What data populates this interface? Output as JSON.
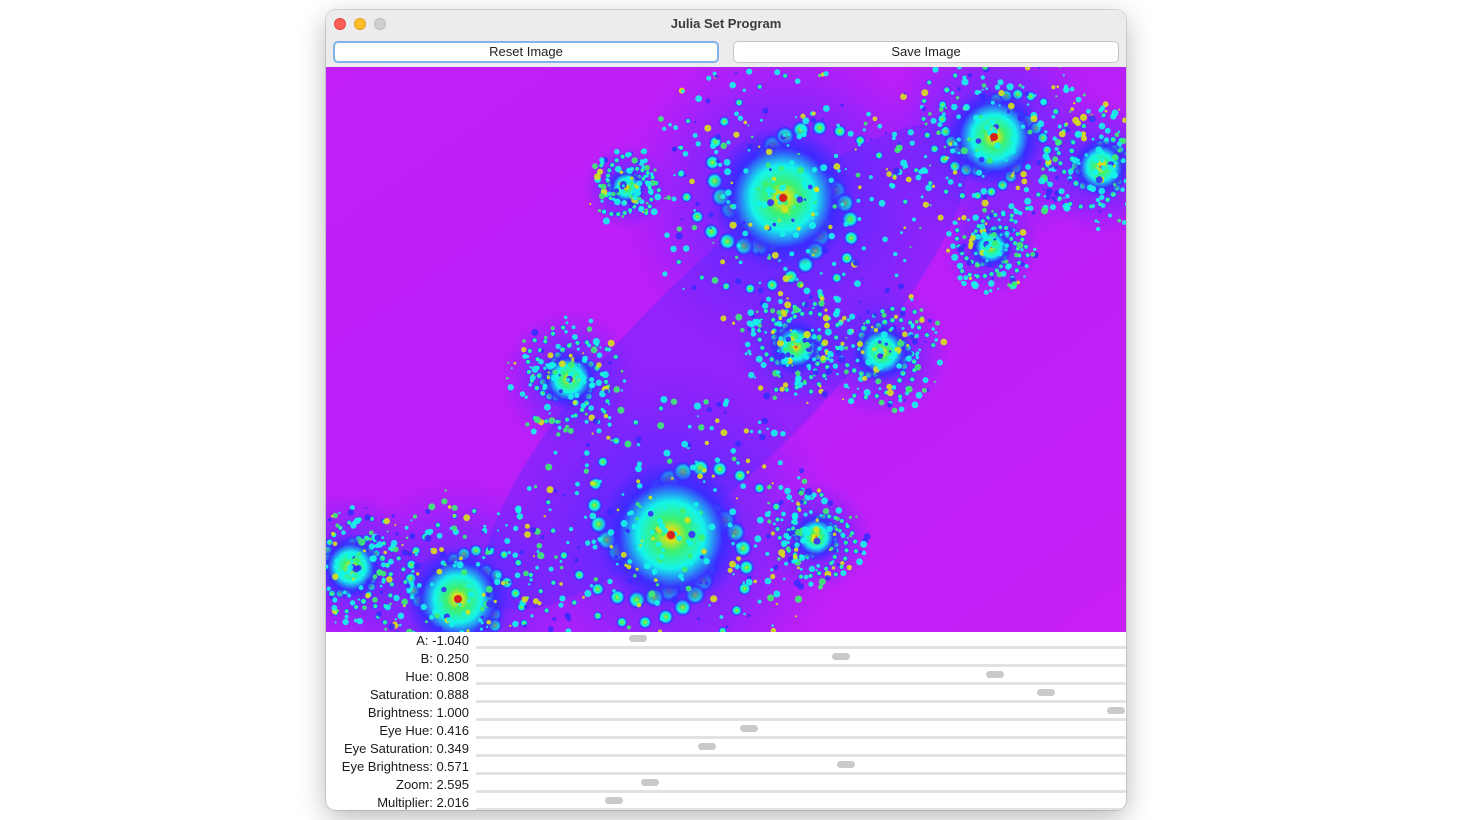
{
  "window": {
    "title": "Julia Set Program"
  },
  "toolbar": {
    "reset_label": "Reset Image",
    "save_label": "Save Image"
  },
  "fractal": {
    "background_color": "#c61ff7",
    "colors": {
      "blue": "#3a2bff",
      "cyan": "#14f5ea",
      "green": "#3cf070",
      "yellow": "#d8e21a",
      "red": "#d8231c"
    }
  },
  "sliders": [
    {
      "label": "A: -1.040",
      "fraction": 0.249
    },
    {
      "label": "B: 0.250",
      "fraction": 0.562
    },
    {
      "label": "Hue: 0.808",
      "fraction": 0.799
    },
    {
      "label": "Saturation: 0.888",
      "fraction": 0.877
    },
    {
      "label": "Brightness: 1.000",
      "fraction": 0.985
    },
    {
      "label": "Eye Hue: 0.416",
      "fraction": 0.42
    },
    {
      "label": "Eye Saturation: 0.349",
      "fraction": 0.355
    },
    {
      "label": "Eye Brightness: 0.571",
      "fraction": 0.569
    },
    {
      "label": "Zoom: 2.595",
      "fraction": 0.268
    },
    {
      "label": "Multiplier: 2.016",
      "fraction": 0.212
    }
  ]
}
